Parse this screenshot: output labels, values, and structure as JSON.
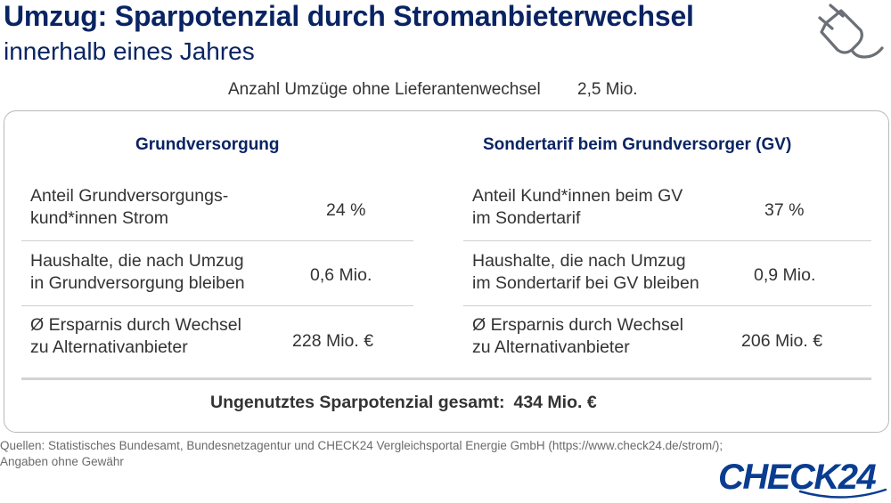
{
  "header": {
    "title": "Umzug: Sparpotenzial durch Stromanbieterwechsel",
    "subtitle": "innerhalb eines Jahres",
    "icon": "plug-icon"
  },
  "summary": {
    "label": "Anzahl Umzüge ohne Lieferantenwechsel",
    "value": "2,5 Mio."
  },
  "table": {
    "left_heading": "Grundversorgung",
    "right_heading": "Sondertarif beim Grundversorger (GV)",
    "rows": [
      {
        "left_label_1": "Anteil Grundversorgungs-",
        "left_label_2": "kund*innen Strom",
        "left_value": "24 %",
        "right_label_1": "Anteil Kund*innen beim GV",
        "right_label_2": "im Sondertarif",
        "right_value": "37 %"
      },
      {
        "left_label_1": "Haushalte, die nach Umzug",
        "left_label_2": "in Grundversorgung bleiben",
        "left_value": "0,6 Mio.",
        "right_label_1": "Haushalte, die nach Umzug",
        "right_label_2": "im Sondertarif bei GV bleiben",
        "right_value": "0,9 Mio."
      },
      {
        "left_label_1": "Ø Ersparnis durch Wechsel",
        "left_label_2": "zu Alternativanbieter",
        "left_value": "228 Mio. €",
        "right_label_1": "Ø Ersparnis durch Wechsel",
        "right_label_2": "zu Alternativanbieter",
        "right_value": "206 Mio. €"
      }
    ],
    "total_label": "Ungenutztes Sparpotenzial gesamt:",
    "total_value": "434 Mio. €"
  },
  "footer": {
    "sources_line_1": "Quellen: Statistisches Bundesamt, Bundesnetzagentur und CHECK24 Vergleichsportal Energie GmbH (https://www.check24.de/strom/);",
    "sources_line_2": "Angaben ohne Gewähr",
    "logo": "CHECK24"
  },
  "colors": {
    "title": "#0a2463",
    "logo": "#0a3d91",
    "text": "#333333",
    "border": "#b8b8b8"
  }
}
